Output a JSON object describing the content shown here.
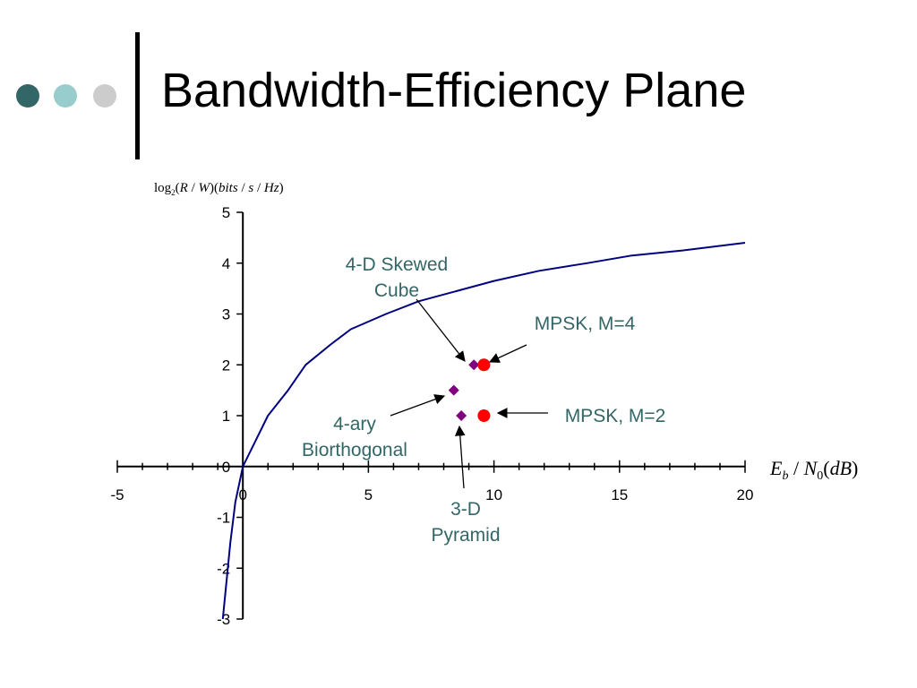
{
  "slide": {
    "title": "Bandwidth-Efficiency Plane",
    "bullet_colors": [
      "#336666",
      "#99cccc",
      "#cccccc"
    ]
  },
  "chart_data": {
    "type": "scatter",
    "ylabel": "log2(R/W)(bits/s/Hz)",
    "xlabel": "Eb/N0(dB)",
    "xlim": [
      -5,
      20
    ],
    "ylim": [
      -3,
      5
    ],
    "x_ticks": [
      "-5",
      "0",
      "5",
      "10",
      "15",
      "20"
    ],
    "y_ticks": [
      "-3",
      "-2",
      "-1",
      "0",
      "1",
      "2",
      "3",
      "4",
      "5"
    ],
    "grid": false,
    "curve": {
      "color": "#000080",
      "x": [
        -0.8,
        -0.7,
        -0.5,
        -0.3,
        0.0,
        0.5,
        1.0,
        1.8,
        2.5,
        3.5,
        4.3,
        5.7,
        7.0,
        8.5,
        10.0,
        11.8,
        13.7,
        15.5,
        17.5,
        20.0
      ],
      "y": [
        -3.0,
        -2.5,
        -1.5,
        -0.7,
        0.0,
        0.5,
        1.0,
        1.5,
        2.0,
        2.4,
        2.7,
        3.0,
        3.25,
        3.45,
        3.65,
        3.85,
        4.0,
        4.15,
        4.25,
        4.4
      ]
    },
    "points": [
      {
        "x": 9.2,
        "y": 2.0,
        "shape": "diamond",
        "color": "#800080"
      },
      {
        "x": 8.4,
        "y": 1.5,
        "shape": "diamond",
        "color": "#800080"
      },
      {
        "x": 8.7,
        "y": 1.0,
        "shape": "diamond",
        "color": "#800080"
      },
      {
        "x": 9.6,
        "y": 2.0,
        "shape": "circle",
        "color": "#ff0000"
      },
      {
        "x": 9.6,
        "y": 1.0,
        "shape": "circle",
        "color": "#ff0000"
      }
    ],
    "annotations": [
      {
        "lines": [
          "4-D Skewed",
          "Cube"
        ],
        "color": "#336666"
      },
      {
        "lines": [
          "MPSK, M=4"
        ],
        "color": "#336666"
      },
      {
        "lines": [
          "MPSK, M=2"
        ],
        "color": "#336666"
      },
      {
        "lines": [
          "4-ary",
          "Biorthogonal"
        ],
        "color": "#336666"
      },
      {
        "lines": [
          "3-D",
          "Pyramid"
        ],
        "color": "#336666"
      }
    ]
  }
}
